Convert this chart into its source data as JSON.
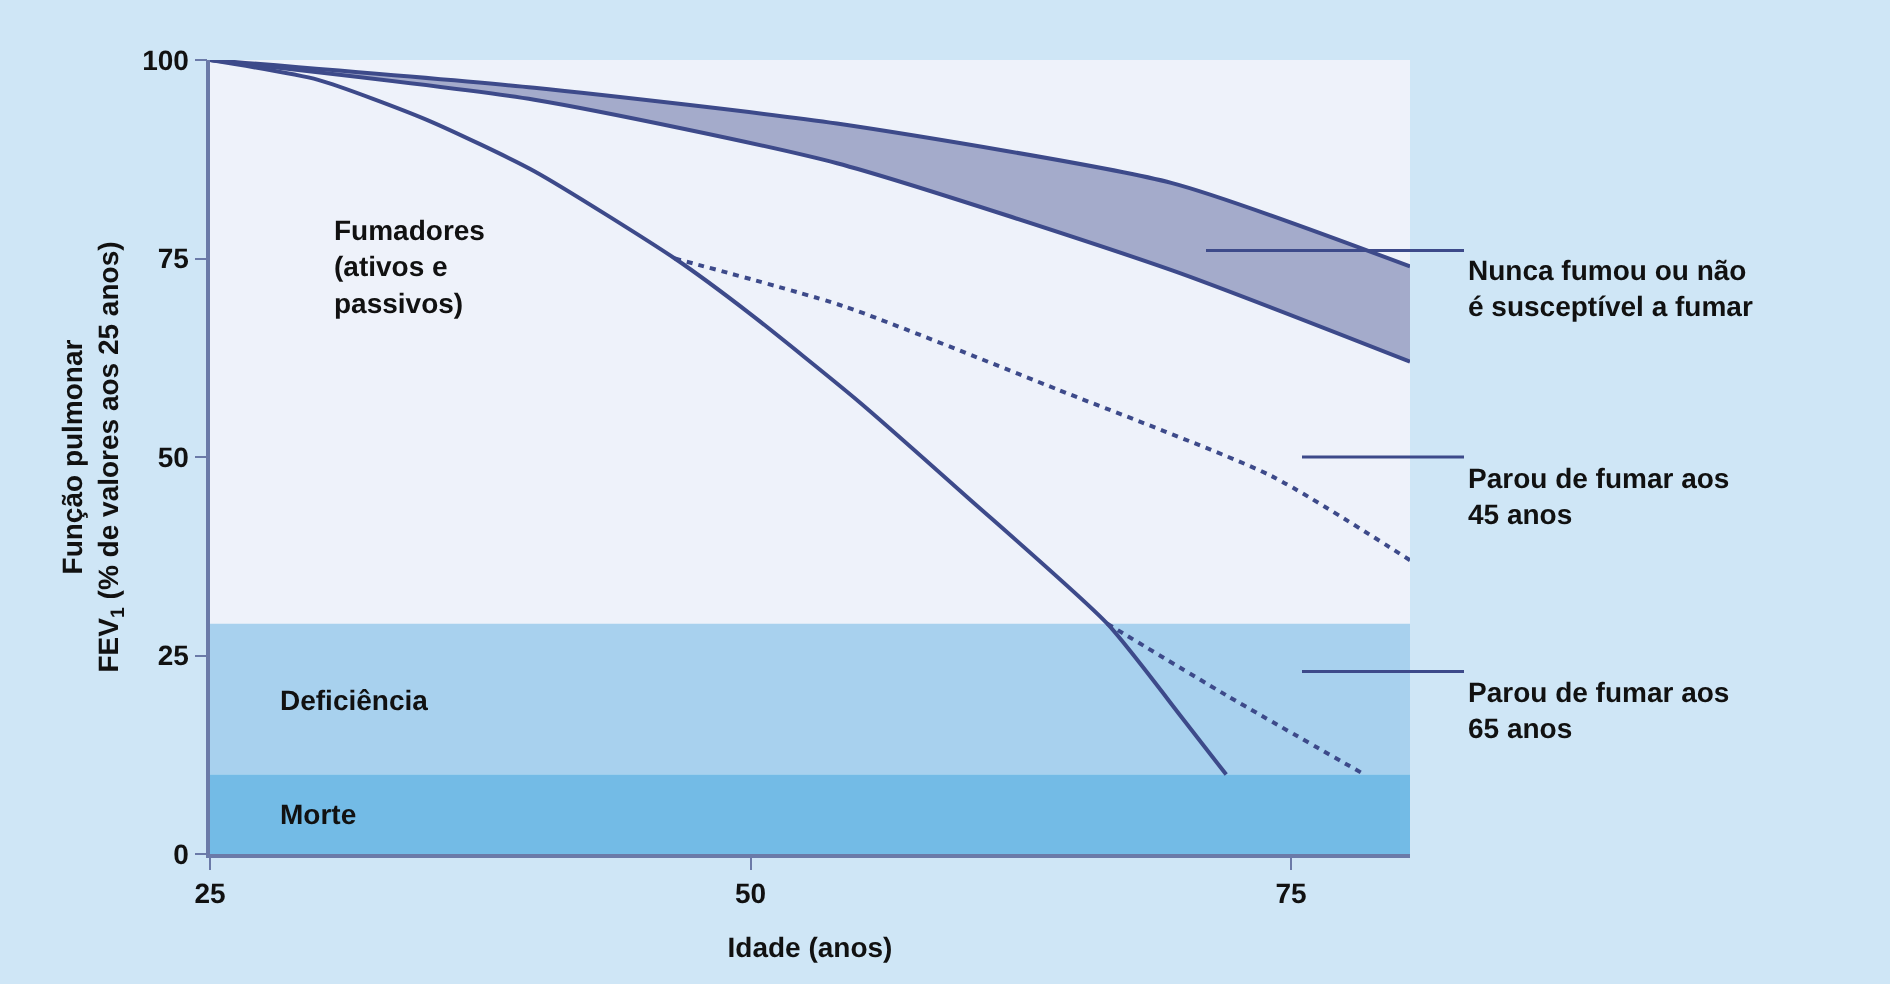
{
  "chart_data": {
    "type": "line",
    "xlabel": "Idade (anos)",
    "ylabel": "Função pulmonar\nFEV$_{1}$ (% de valores aos 25 anos)",
    "xlim": [
      25,
      80.5
    ],
    "xticks": [
      25,
      50,
      75
    ],
    "ylim": [
      0,
      100
    ],
    "yticks": [
      0,
      25,
      50,
      75,
      100
    ],
    "grid": false,
    "legend": false,
    "marker": "none",
    "series": [
      {
        "name": "Nunca fumou ou não\né susceptível a fumar",
        "color": "#3d4a8a",
        "line_style": "solid",
        "x": [
          25,
          40,
          54,
          69.5,
          80.5
        ],
        "values": [
          100,
          96.5,
          92,
          84.5,
          74
        ],
        "upper": [
          100,
          96.5,
          92,
          84.5,
          74
        ],
        "lower": [
          100,
          95,
          87,
          73.5,
          62
        ]
      },
      {
        "color": "#3d4a8a",
        "line_style": "solid",
        "x": [
          25,
          40,
          54,
          69.5,
          80.5
        ],
        "values": [
          100,
          95,
          87,
          73.5,
          62
        ]
      },
      {
        "name": "Fumadores\n(ativos e\npassivos)",
        "color": "#3d4a8a",
        "line_style": "solid",
        "x": [
          25,
          30,
          35,
          40,
          46.5,
          50,
          55,
          60,
          66.5,
          70,
          72
        ],
        "values": [
          100,
          97.5,
          92.5,
          86,
          75,
          68,
          57,
          45,
          29,
          17,
          10
        ]
      },
      {
        "name": "Parou de fumar aos\n45 anos",
        "color": "#3d4a8a",
        "line_style": "dotted",
        "x": [
          46.5,
          54.3,
          64.2,
          74.1,
          80.5
        ],
        "values": [
          75,
          69,
          58.5,
          47.6,
          37
        ]
      },
      {
        "name": "Parou de fumar aos\n65 anos",
        "color": "#3d4a8a",
        "line_style": "dotted",
        "x": [
          66.5,
          72,
          78.4
        ],
        "values": [
          29,
          20,
          10
        ]
      }
    ],
    "bands": [
      {
        "axis": "y",
        "from": 10,
        "to": 29,
        "label": "Deficiência",
        "color": "#a8d1ee"
      },
      {
        "axis": "y",
        "from": 0,
        "to": 10,
        "label": "Morte",
        "color": "#73bbe6"
      }
    ]
  }
}
